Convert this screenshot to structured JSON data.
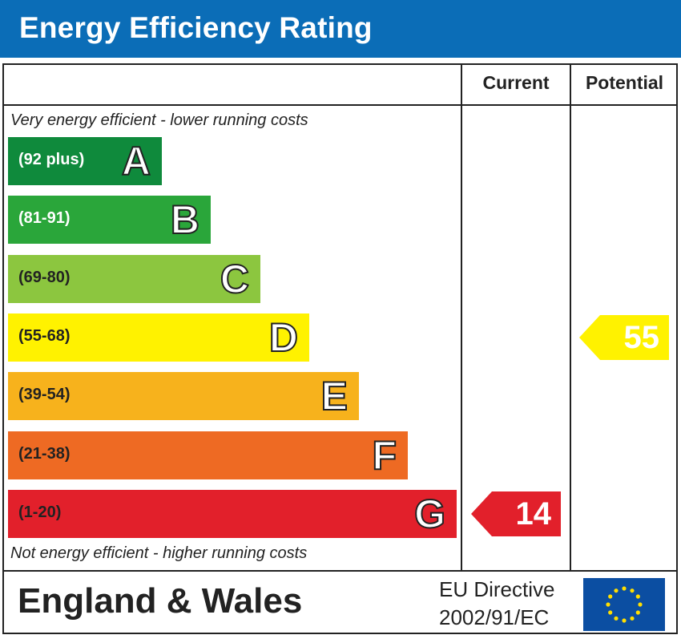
{
  "title": "Energy Efficiency Rating",
  "columns": {
    "current": "Current",
    "potential": "Potential"
  },
  "notes": {
    "top": "Very energy efficient - lower running costs",
    "bottom": "Not energy efficient - higher running costs"
  },
  "chart_data": {
    "type": "bar",
    "title": "Energy Efficiency Rating",
    "categories": [
      "A",
      "B",
      "C",
      "D",
      "E",
      "F",
      "G"
    ],
    "bands": [
      {
        "letter": "A",
        "range": "(92 plus)",
        "min": 92,
        "max": 100,
        "color": "#0f8a3c",
        "range_color": "#ffffff"
      },
      {
        "letter": "B",
        "range": "(81-91)",
        "min": 81,
        "max": 91,
        "color": "#2aa63a",
        "range_color": "#ffffff"
      },
      {
        "letter": "C",
        "range": "(69-80)",
        "min": 69,
        "max": 80,
        "color": "#8cc63f",
        "range_color": "#222222"
      },
      {
        "letter": "D",
        "range": "(55-68)",
        "min": 55,
        "max": 68,
        "color": "#fff200",
        "range_color": "#222222"
      },
      {
        "letter": "E",
        "range": "(39-54)",
        "min": 39,
        "max": 54,
        "color": "#f7b21c",
        "range_color": "#222222"
      },
      {
        "letter": "F",
        "range": "(21-38)",
        "min": 21,
        "max": 38,
        "color": "#ee6a23",
        "range_color": "#222222"
      },
      {
        "letter": "G",
        "range": "(1-20)",
        "min": 1,
        "max": 20,
        "color": "#e2202b",
        "range_color": "#222222"
      }
    ],
    "current": {
      "value": 14,
      "band": "G",
      "color": "#e2202b"
    },
    "potential": {
      "value": 55,
      "band": "D",
      "color": "#fff200"
    }
  },
  "footer": {
    "region": "England & Wales",
    "directive_line1": "EU Directive",
    "directive_line2": "2002/91/EC",
    "flag_icon": "eu-flag-icon",
    "flag_color": "#0b4ea2",
    "star_color": "#ffde00"
  }
}
